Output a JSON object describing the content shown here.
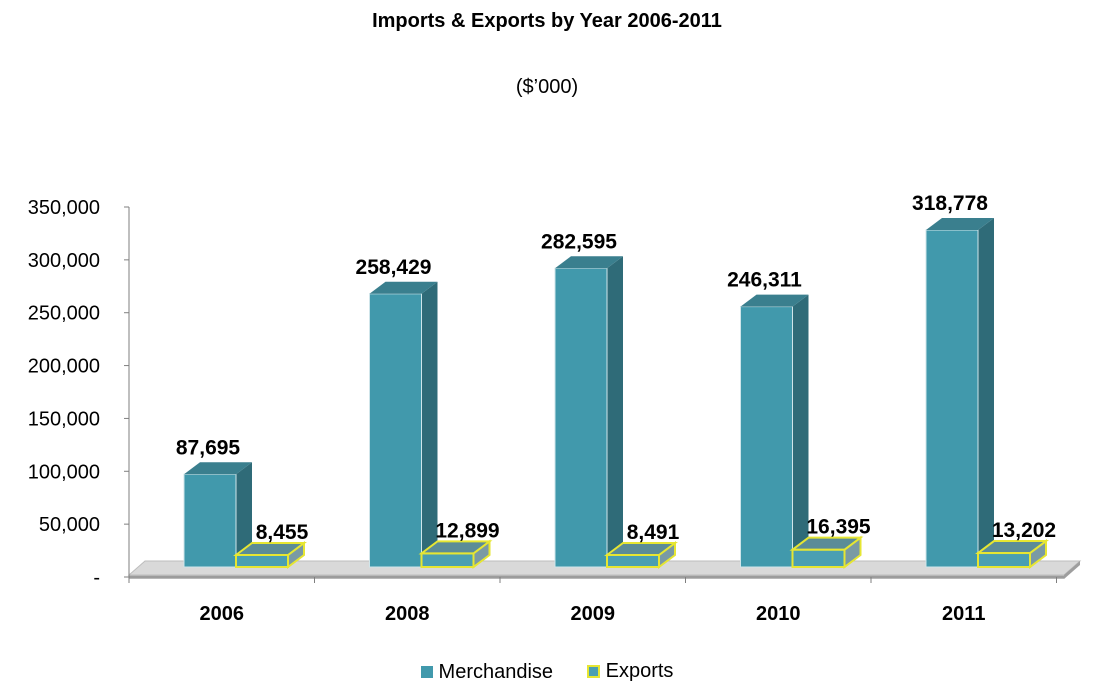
{
  "chart_data": {
    "type": "bar",
    "title": "Imports & Exports by Year 2006-2011",
    "subtitle": "($’000)",
    "categories": [
      "2006",
      "2008",
      "2009",
      "2010",
      "2011"
    ],
    "series": [
      {
        "name": "Merchandise",
        "values": [
          87695,
          258429,
          282595,
          246311,
          318778
        ],
        "labels": [
          "87,695",
          "258,429",
          "282,595",
          "246,311",
          "318,778"
        ],
        "color": "#4199ac"
      },
      {
        "name": "Exports",
        "values": [
          8455,
          12899,
          8491,
          16395,
          13202
        ],
        "labels": [
          "8,455",
          "12,899",
          "8,491",
          "16,395",
          "13,202"
        ],
        "color": "#4a9fb2",
        "edge": "#e6e632"
      }
    ],
    "yticks": [
      {
        "value": 0,
        "label": "-"
      },
      {
        "value": 50000,
        "label": "50,000"
      },
      {
        "value": 100000,
        "label": "100,000"
      },
      {
        "value": 150000,
        "label": "150,000"
      },
      {
        "value": 200000,
        "label": "200,000"
      },
      {
        "value": 250000,
        "label": "250,000"
      },
      {
        "value": 300000,
        "label": "300,000"
      },
      {
        "value": 350000,
        "label": "350,000"
      }
    ],
    "ylim": [
      0,
      350000
    ],
    "grid": false,
    "legend_position": "bottom"
  }
}
